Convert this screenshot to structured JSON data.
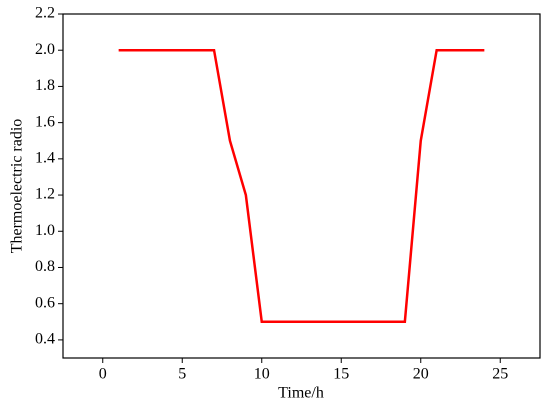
{
  "chart_data": {
    "type": "line",
    "x_label": "Time/h",
    "y_label": "Thermoelectric radio",
    "x": [
      1,
      2,
      3,
      4,
      5,
      6,
      7,
      8,
      9,
      10,
      11,
      12,
      13,
      14,
      15,
      16,
      17,
      18,
      19,
      20,
      21,
      22,
      23,
      24
    ],
    "series": [
      {
        "color": "#ff0000",
        "values": [
          2.0,
          2.0,
          2.0,
          2.0,
          2.0,
          2.0,
          2.0,
          1.5,
          1.2,
          0.5,
          0.5,
          0.5,
          0.5,
          0.5,
          0.5,
          0.5,
          0.5,
          0.5,
          0.5,
          1.5,
          2.0,
          2.0,
          2.0,
          2.0
        ]
      }
    ],
    "xlim": [
      -2.5,
      27.5
    ],
    "xticks": [
      0,
      5,
      10,
      15,
      20,
      25
    ],
    "ylim": [
      0.3,
      2.2
    ],
    "yticks": [
      0.4,
      0.6,
      0.8,
      {
        "value": 1.0,
        "label": "1.0"
      },
      1.2,
      1.4,
      1.6,
      1.8,
      {
        "value": 2.0,
        "label": "2.0"
      },
      2.2
    ]
  }
}
